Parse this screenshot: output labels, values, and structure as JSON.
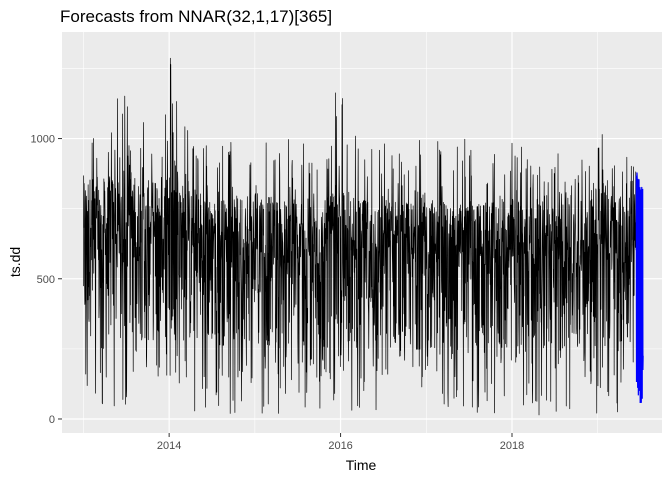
{
  "chart_data": {
    "type": "line",
    "title": "Forecasts from NNAR(32,1,17)[365]",
    "xlabel": "Time",
    "ylabel": "ts.dd",
    "xlim": [
      2012.75,
      2019.75
    ],
    "ylim": [
      -50,
      1380
    ],
    "x_ticks": [
      2014,
      2016,
      2018
    ],
    "x_tick_labels": [
      "2014",
      "2016",
      "2018"
    ],
    "y_ticks": [
      0,
      500,
      1000
    ],
    "y_tick_labels": [
      "0",
      "500",
      "1000"
    ],
    "grid": true,
    "legend": "none",
    "series": [
      {
        "role": "observed",
        "color": "#000000",
        "start": 2013.0,
        "end": 2019.45,
        "frequency": 365,
        "envelope": {
          "x": [
            2013.0,
            2013.25,
            2013.5,
            2013.75,
            2014.0,
            2014.25,
            2014.5,
            2014.75,
            2015.0,
            2015.25,
            2015.5,
            2015.75,
            2016.0,
            2016.25,
            2016.5,
            2016.75,
            2017.0,
            2017.25,
            2017.5,
            2017.75,
            2018.0,
            2018.25,
            2018.5,
            2018.75,
            2019.0,
            2019.25,
            2019.45
          ],
          "upper": [
            1100,
            1050,
            1210,
            1090,
            1340,
            1010,
            980,
            1000,
            1140,
            960,
            1030,
            950,
            1250,
            980,
            1000,
            1000,
            1100,
            930,
            1050,
            1000,
            1080,
            900,
            960,
            900,
            1040,
            1000,
            900
          ],
          "lower": [
            40,
            20,
            30,
            15,
            10,
            20,
            20,
            15,
            20,
            20,
            15,
            10,
            15,
            15,
            10,
            15,
            20,
            15,
            15,
            10,
            10,
            15,
            10,
            10,
            5,
            10,
            20
          ],
          "typical_high": [
            870,
            860,
            900,
            850,
            900,
            830,
            800,
            790,
            830,
            780,
            800,
            770,
            820,
            780,
            800,
            770,
            810,
            760,
            780,
            770,
            800,
            760,
            780,
            760,
            860,
            800,
            780
          ],
          "typical_low": [
            300,
            280,
            300,
            270,
            290,
            260,
            260,
            260,
            270,
            250,
            260,
            240,
            260,
            250,
            250,
            240,
            250,
            240,
            250,
            240,
            240,
            240,
            240,
            230,
            240,
            240,
            250
          ]
        }
      },
      {
        "role": "forecast",
        "color": "#0000ff",
        "start": 2019.45,
        "end": 2019.53,
        "envelope": {
          "upper": [
            880,
            860,
            840,
            830
          ],
          "lower": [
            20,
            10,
            30,
            50
          ]
        }
      }
    ]
  }
}
